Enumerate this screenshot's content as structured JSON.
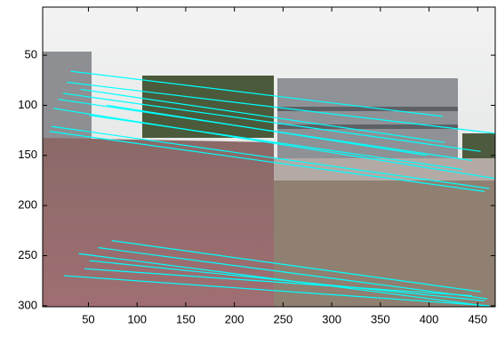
{
  "chart_data": {
    "type": "segments",
    "xlim": [
      3,
      468
    ],
    "ylim": [
      2,
      301
    ],
    "y_reversed": true,
    "xticks": [
      50,
      100,
      150,
      200,
      250,
      300,
      350,
      400,
      450
    ],
    "yticks": [
      50,
      100,
      150,
      200,
      250,
      300
    ],
    "color": "#00ffff",
    "lines": [
      {
        "x": [
          32,
          414
        ],
        "y": [
          66,
          111
        ]
      },
      {
        "x": [
          28,
          468
        ],
        "y": [
          77,
          128
        ]
      },
      {
        "x": [
          24,
          453
        ],
        "y": [
          88,
          146
        ]
      },
      {
        "x": [
          14,
          468
        ],
        "y": [
          103,
          173
        ]
      },
      {
        "x": [
          12,
          462
        ],
        "y": [
          121,
          183
        ]
      },
      {
        "x": [
          19,
          444
        ],
        "y": [
          94,
          155
        ]
      },
      {
        "x": [
          42,
          416
        ],
        "y": [
          84,
          137
        ]
      },
      {
        "x": [
          51,
          434
        ],
        "y": [
          110,
          164
        ]
      },
      {
        "x": [
          10,
          457
        ],
        "y": [
          126,
          186
        ]
      },
      {
        "x": [
          69,
          398
        ],
        "y": [
          100,
          150
        ]
      },
      {
        "x": [
          74,
          453
        ],
        "y": [
          235,
          286
        ]
      },
      {
        "x": [
          60,
          460
        ],
        "y": [
          242,
          293
        ]
      },
      {
        "x": [
          40,
          457
        ],
        "y": [
          248,
          300
        ]
      },
      {
        "x": [
          51,
          457
        ],
        "y": [
          255,
          295
        ]
      },
      {
        "x": [
          25,
          462
        ],
        "y": [
          270,
          300
        ]
      },
      {
        "x": [
          46,
          444
        ],
        "y": [
          263,
          290
        ]
      }
    ]
  }
}
